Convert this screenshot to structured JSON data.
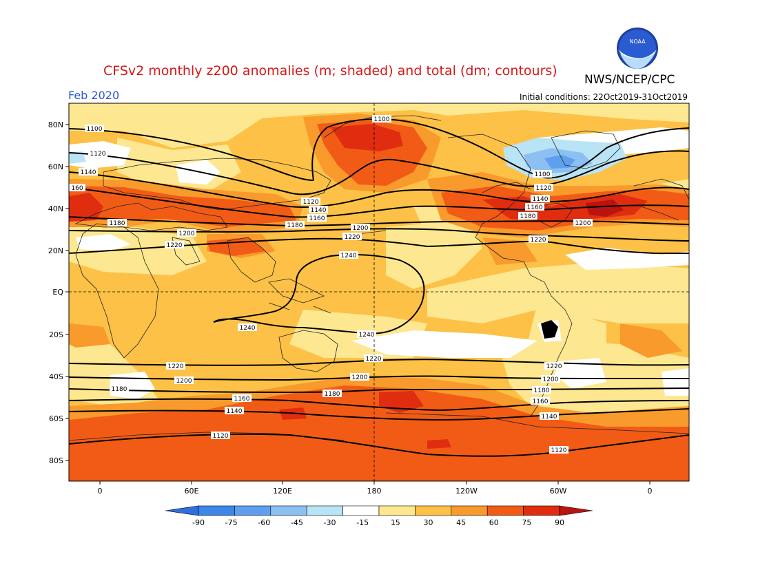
{
  "header": {
    "title": "CFSv2 monthly z200 anomalies (m; shaded) and total (dm; contours)",
    "org": "NWS/NCEP/CPC",
    "month": "Feb 2020",
    "initial_conditions": "Initial conditions: 22Oct2019-31Oct2019",
    "logo_text": "NOAA"
  },
  "map": {
    "lat_ticks": [
      "80N",
      "60N",
      "40N",
      "20N",
      "EQ",
      "20S",
      "40S",
      "60S",
      "80S"
    ],
    "lon_ticks": [
      "0",
      "60E",
      "120E",
      "180",
      "120W",
      "60W",
      "0"
    ],
    "contour_labels": [
      {
        "name": "c1100",
        "value": "1100"
      },
      {
        "name": "c1120",
        "value": "1120"
      },
      {
        "name": "c1140",
        "value": "1140"
      },
      {
        "name": "c1160",
        "value": "1160"
      },
      {
        "name": "c1180",
        "value": "1180"
      },
      {
        "name": "c1200",
        "value": "1200"
      },
      {
        "name": "c1220",
        "value": "1220"
      },
      {
        "name": "c1240",
        "value": "1240"
      }
    ]
  },
  "colorbar": {
    "ticks": [
      "-90",
      "-75",
      "-60",
      "-45",
      "-30",
      "-15",
      "15",
      "30",
      "45",
      "60",
      "75",
      "90"
    ],
    "colors": [
      "#2f6fe0",
      "#3f86ea",
      "#5fa0ee",
      "#8cc0f2",
      "#b9e4f5",
      "#ffffff",
      "#fde790",
      "#fcc146",
      "#f89a2c",
      "#f25b16",
      "#e02d10",
      "#b81410"
    ]
  }
}
